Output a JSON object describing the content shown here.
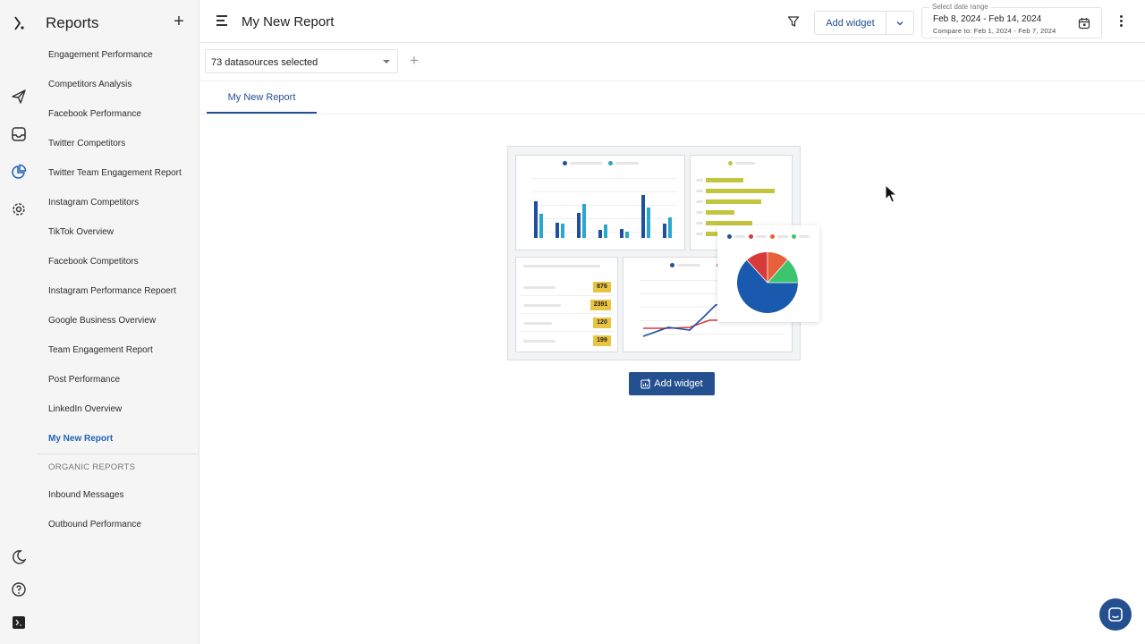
{
  "sidebar": {
    "title": "Reports",
    "add_symbol": "+",
    "items": [
      {
        "label": "Engagement Performance"
      },
      {
        "label": "Competitors Analysis"
      },
      {
        "label": "Facebook Performance"
      },
      {
        "label": "Twitter Competitors"
      },
      {
        "label": "Twitter Team Engagement Report"
      },
      {
        "label": "Instagram Competitors"
      },
      {
        "label": "TikTok Overview"
      },
      {
        "label": "Facebook Competitors"
      },
      {
        "label": "Instagram Performance Repoert"
      },
      {
        "label": "Google Business Overview"
      },
      {
        "label": "Team Engagement Report"
      },
      {
        "label": "Post Performance"
      },
      {
        "label": "LinkedIn Overview"
      },
      {
        "label": "My New Report"
      }
    ],
    "section_label": "ORGANIC REPORTS",
    "section_items": [
      {
        "label": "Inbound Messages"
      },
      {
        "label": "Outbound Performance"
      }
    ]
  },
  "rail": {
    "icons": [
      "logo-icon",
      "send-icon",
      "inbox-icon",
      "reports-icon",
      "settings-icon",
      "moon-icon",
      "help-icon",
      "terminal-icon"
    ]
  },
  "header": {
    "title": "My New Report",
    "add_widget_label": "Add widget",
    "date_caption": "Select date range",
    "date_range": "Feb 8, 2024 - Feb 14, 2024",
    "compare_text": "Compare to: Feb 1, 2024 - Feb 7, 2024"
  },
  "datasources": {
    "selected_text": "73 datasources selected",
    "add_symbol": "+"
  },
  "tabs": [
    {
      "label": "My New Report"
    }
  ],
  "empty_state": {
    "illustration_numbers": [
      "876",
      "2391",
      "120",
      "199"
    ],
    "button_label": "Add widget"
  },
  "colors": {
    "accent": "#24508f",
    "active_link": "#1f62b8"
  }
}
